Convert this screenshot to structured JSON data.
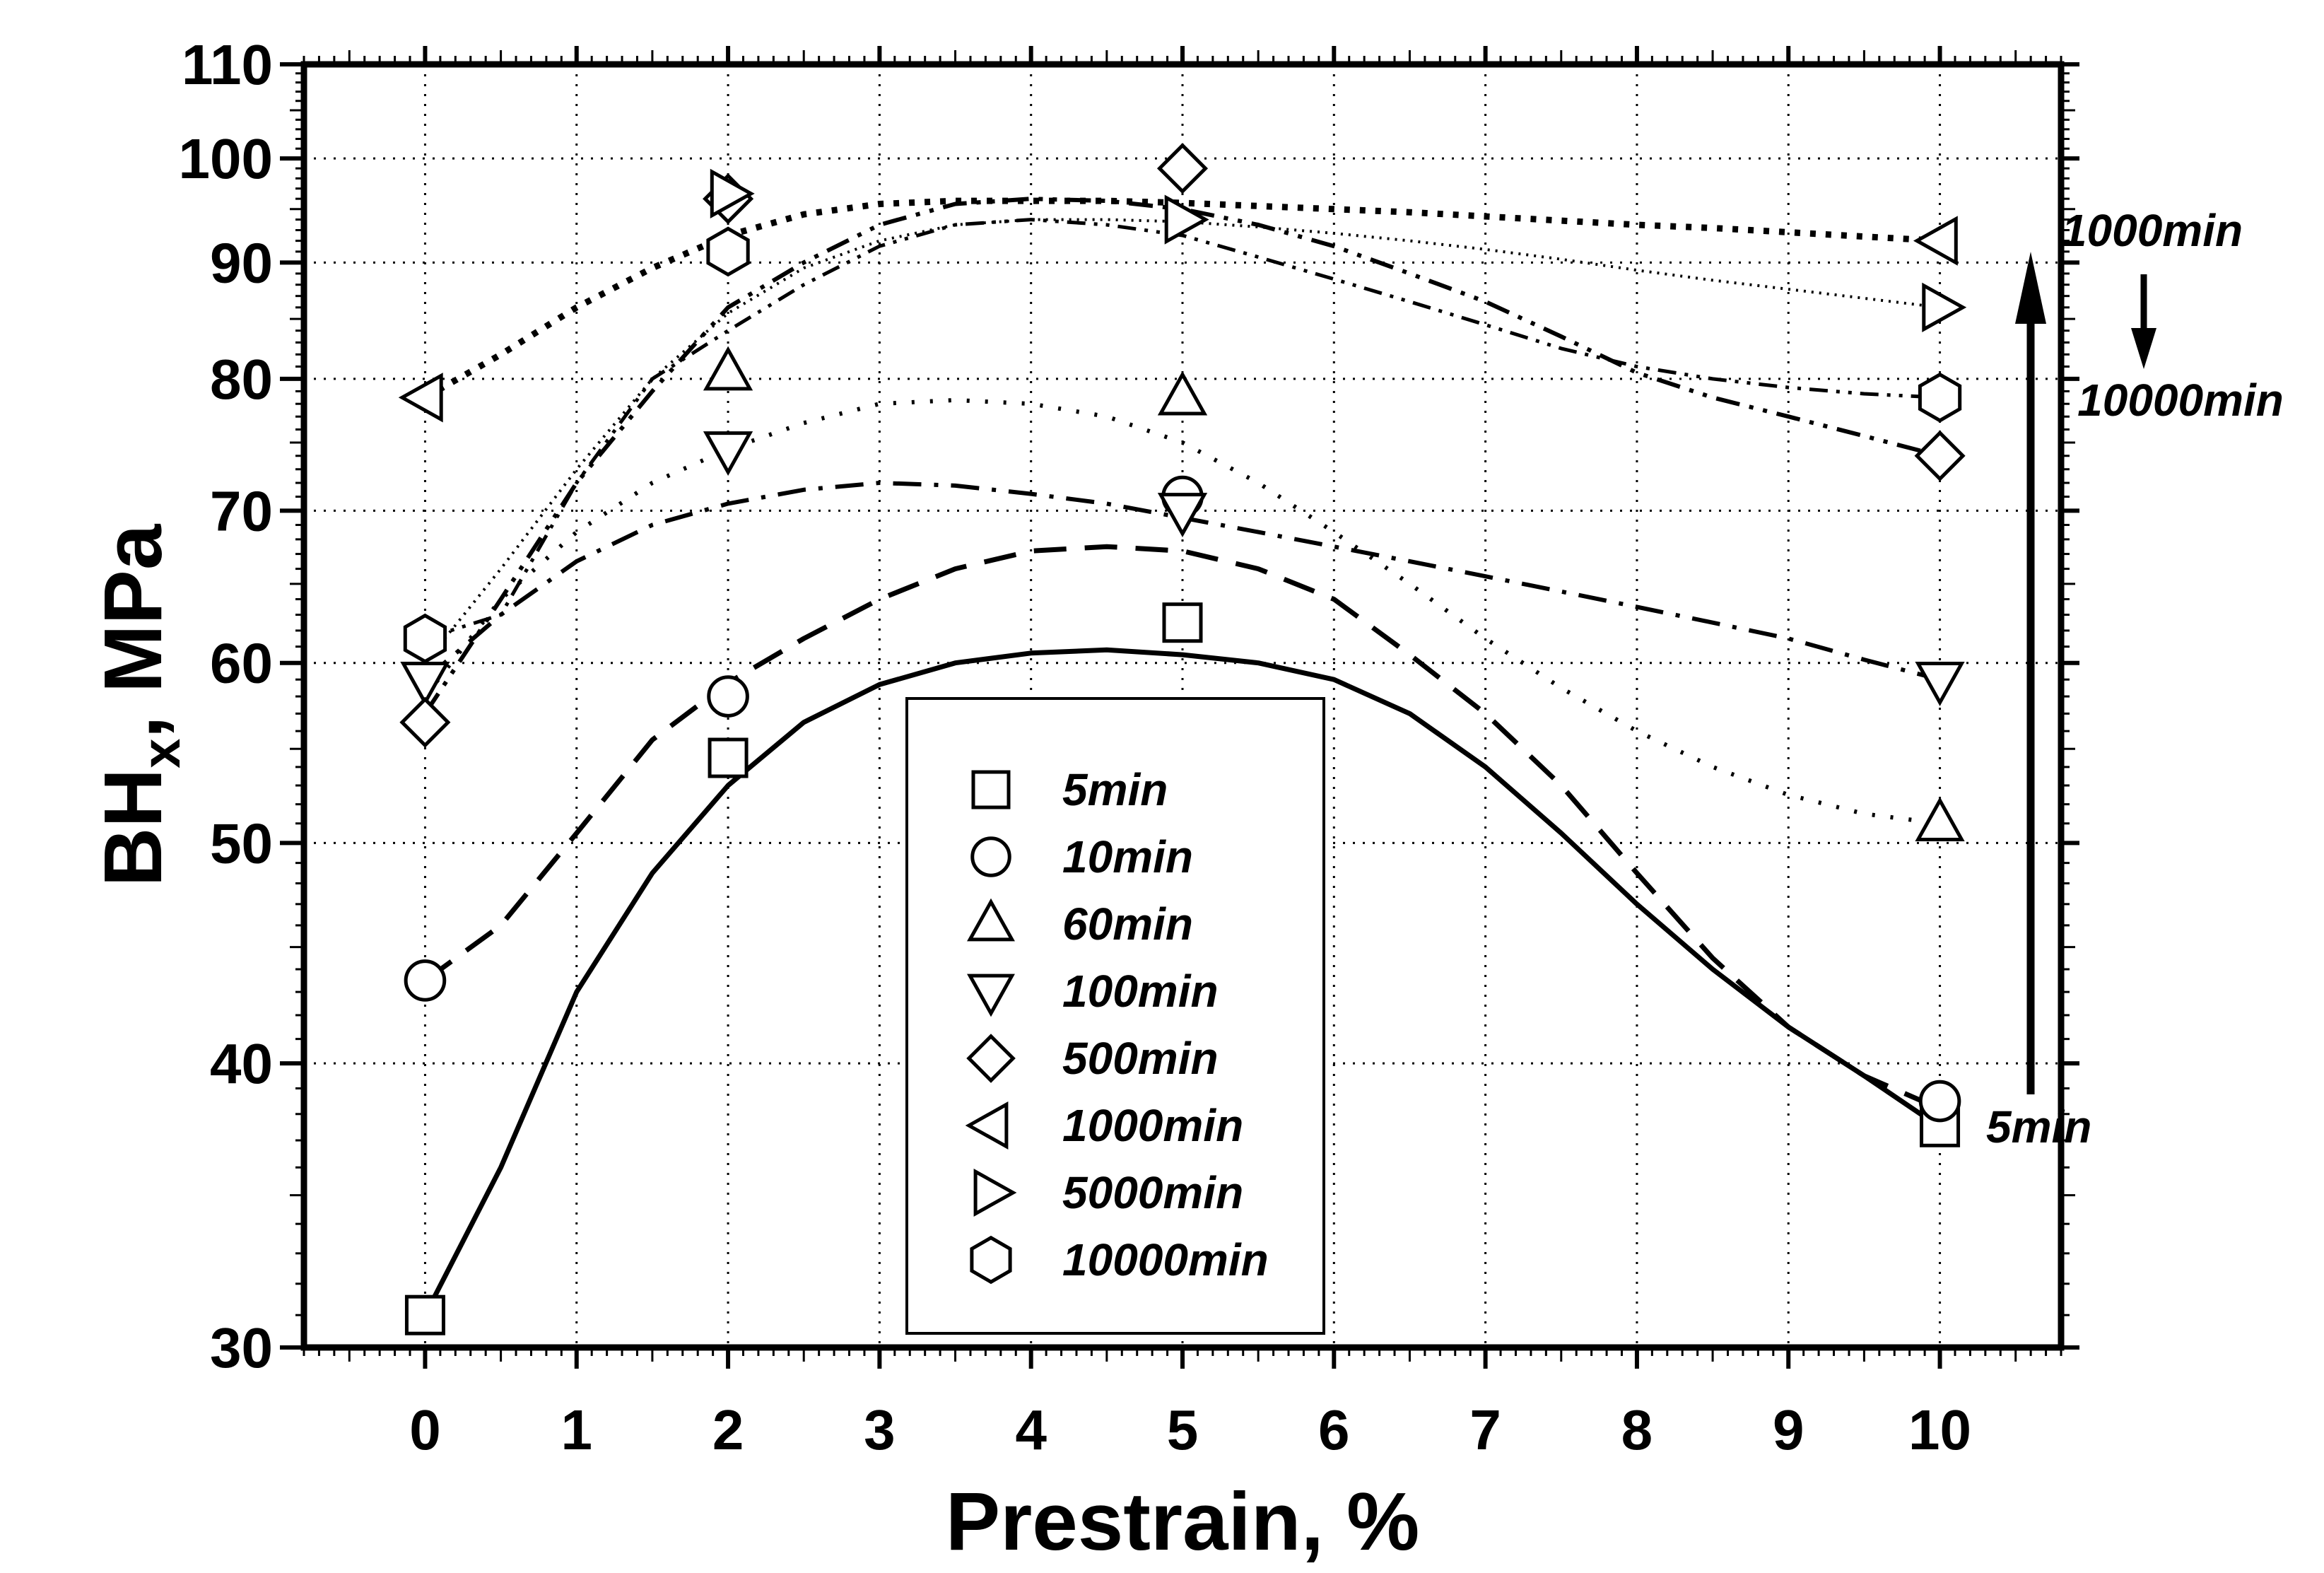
{
  "chart_data": {
    "type": "scatter",
    "title": "",
    "xlabel": "Prestrain, %",
    "ylabel": "BH",
    "ylabel_sub": "x",
    "ylabel_unit": ", MPa",
    "xlim": [
      -0.8,
      10.8
    ],
    "ylim": [
      30,
      110
    ],
    "yscale": "log",
    "grid": true,
    "grid_style": "dotted",
    "x_ticks": [
      0,
      1,
      2,
      3,
      4,
      5,
      6,
      7,
      8,
      9,
      10
    ],
    "x_tick_labels": [
      "0",
      "1",
      "2",
      "3",
      "4",
      "5",
      "6",
      "7",
      "8",
      "9",
      "10"
    ],
    "y_ticks": [
      30,
      40,
      50,
      60,
      70,
      80,
      90,
      100,
      110
    ],
    "y_tick_labels": [
      "30",
      "40",
      "50",
      "60",
      "70",
      "80",
      "90",
      "100",
      "110"
    ],
    "x_categories": [
      0,
      2,
      5,
      10
    ],
    "legend_position": "center",
    "series": [
      {
        "name": "5min",
        "marker": "square",
        "line": "solid",
        "x": [
          0,
          2,
          5,
          10
        ],
        "values": [
          31,
          54.5,
          62.5,
          37.5
        ],
        "curve": [
          [
            0,
            31
          ],
          [
            0.5,
            36
          ],
          [
            1,
            43
          ],
          [
            1.5,
            48.5
          ],
          [
            2,
            53
          ],
          [
            2.5,
            56.5
          ],
          [
            3,
            58.7
          ],
          [
            3.5,
            60
          ],
          [
            4,
            60.6
          ],
          [
            4.5,
            60.8
          ],
          [
            5,
            60.5
          ],
          [
            5.5,
            60
          ],
          [
            6,
            59
          ],
          [
            6.5,
            57
          ],
          [
            7,
            54
          ],
          [
            7.5,
            50.5
          ],
          [
            8,
            47
          ],
          [
            8.5,
            44
          ],
          [
            9,
            41.5
          ],
          [
            9.5,
            39.5
          ],
          [
            10,
            37.5
          ]
        ]
      },
      {
        "name": "10min",
        "marker": "circle",
        "line": "dashed",
        "x": [
          0,
          2,
          5,
          10
        ],
        "values": [
          43.5,
          58,
          71,
          38.5
        ],
        "curve": [
          [
            0,
            43.5
          ],
          [
            0.5,
            46
          ],
          [
            1,
            50.5
          ],
          [
            1.5,
            55.5
          ],
          [
            2,
            58.8
          ],
          [
            2.5,
            61.5
          ],
          [
            3,
            64
          ],
          [
            3.5,
            66
          ],
          [
            4,
            67.2
          ],
          [
            4.5,
            67.5
          ],
          [
            5,
            67.2
          ],
          [
            5.5,
            66
          ],
          [
            6,
            64
          ],
          [
            6.5,
            60.5
          ],
          [
            7,
            57
          ],
          [
            7.5,
            53
          ],
          [
            8,
            48.5
          ],
          [
            8.5,
            44.5
          ],
          [
            9,
            41.5
          ],
          [
            9.5,
            39.5
          ],
          [
            10,
            38.2
          ]
        ]
      },
      {
        "name": "60min",
        "marker": "triangle-up",
        "line": "dotted",
        "x": [
          2,
          5,
          10
        ],
        "values": [
          80.5,
          78.5,
          51
        ],
        "curve": [
          [
            0,
            58
          ],
          [
            0.5,
            64
          ],
          [
            1,
            68.5
          ],
          [
            1.5,
            72
          ],
          [
            2,
            74.5
          ],
          [
            2.5,
            76.5
          ],
          [
            3,
            78
          ],
          [
            3.5,
            78.3
          ],
          [
            4,
            78
          ],
          [
            4.5,
            77
          ],
          [
            5,
            75
          ],
          [
            5.5,
            72
          ],
          [
            6,
            68.5
          ],
          [
            6.5,
            65
          ],
          [
            7,
            61.5
          ],
          [
            7.5,
            58.5
          ],
          [
            8,
            56
          ],
          [
            8.5,
            54
          ],
          [
            9,
            52.5
          ],
          [
            9.5,
            51.5
          ],
          [
            10,
            51
          ]
        ]
      },
      {
        "name": "100min",
        "marker": "triangle-down",
        "line": "dash-dot",
        "x": [
          0,
          2,
          5,
          10
        ],
        "values": [
          59,
          74.5,
          70,
          59
        ],
        "curve": [
          [
            0,
            59
          ],
          [
            0.5,
            63
          ],
          [
            1,
            66.5
          ],
          [
            1.5,
            69
          ],
          [
            2,
            70.5
          ],
          [
            2.5,
            71.5
          ],
          [
            3,
            72
          ],
          [
            3.5,
            71.8
          ],
          [
            4,
            71.2
          ],
          [
            4.5,
            70.5
          ],
          [
            5,
            69.5
          ],
          [
            5.5,
            68.5
          ],
          [
            6,
            67.5
          ],
          [
            6.5,
            66.5
          ],
          [
            7,
            65.5
          ],
          [
            7.5,
            64.5
          ],
          [
            8,
            63.5
          ],
          [
            8.5,
            62.5
          ],
          [
            9,
            61.5
          ],
          [
            9.5,
            60.2
          ],
          [
            10,
            59
          ]
        ]
      },
      {
        "name": "500min",
        "marker": "diamond",
        "line": "dash-dot-dot",
        "x": [
          0,
          2,
          5,
          10
        ],
        "values": [
          56.5,
          96,
          99,
          74
        ],
        "curve": [
          [
            0,
            57
          ],
          [
            0.5,
            64
          ],
          [
            1,
            72
          ],
          [
            1.5,
            79
          ],
          [
            2,
            86
          ],
          [
            2.5,
            90
          ],
          [
            3,
            93.5
          ],
          [
            3.5,
            95.5
          ],
          [
            4,
            96
          ],
          [
            4.5,
            95.8
          ],
          [
            5,
            95
          ],
          [
            5.5,
            93.5
          ],
          [
            6,
            91.5
          ],
          [
            6.5,
            89
          ],
          [
            7,
            86.5
          ],
          [
            7.5,
            83.5
          ],
          [
            8,
            80.5
          ],
          [
            8.5,
            78.5
          ],
          [
            9,
            77
          ],
          [
            9.5,
            75.5
          ],
          [
            10,
            74
          ]
        ]
      },
      {
        "name": "1000min",
        "marker": "triangle-left",
        "line": "dense-dotted",
        "x": [
          0,
          10
        ],
        "values": [
          78.5,
          92
        ],
        "curve": [
          [
            0,
            78.5
          ],
          [
            0.5,
            82
          ],
          [
            1,
            86
          ],
          [
            1.5,
            89.5
          ],
          [
            2,
            92.5
          ],
          [
            2.5,
            94.5
          ],
          [
            3,
            95.5
          ],
          [
            3.5,
            95.8
          ],
          [
            4,
            95.8
          ],
          [
            4.5,
            95.8
          ],
          [
            5,
            95.6
          ],
          [
            5.5,
            95.3
          ],
          [
            6,
            95
          ],
          [
            6.5,
            94.7
          ],
          [
            7,
            94.3
          ],
          [
            7.5,
            93.9
          ],
          [
            8,
            93.5
          ],
          [
            8.5,
            93.2
          ],
          [
            9,
            92.8
          ],
          [
            9.5,
            92.4
          ],
          [
            10,
            92
          ]
        ]
      },
      {
        "name": "5000min",
        "marker": "triangle-right",
        "line": "fine-dotted",
        "x": [
          2,
          5,
          10
        ],
        "values": [
          96.5,
          94,
          86
        ],
        "curve": [
          [
            0,
            60
          ],
          [
            0.5,
            66
          ],
          [
            1,
            73
          ],
          [
            1.5,
            80
          ],
          [
            2,
            85.5
          ],
          [
            2.5,
            89.5
          ],
          [
            3,
            92
          ],
          [
            3.5,
            93.5
          ],
          [
            4,
            94
          ],
          [
            4.5,
            94
          ],
          [
            5,
            93.8
          ],
          [
            5.5,
            93.3
          ],
          [
            6,
            92.7
          ],
          [
            6.5,
            92
          ],
          [
            7,
            91.2
          ],
          [
            7.5,
            90.3
          ],
          [
            8,
            89.3
          ],
          [
            8.5,
            88.4
          ],
          [
            9,
            87.6
          ],
          [
            9.5,
            86.8
          ],
          [
            10,
            86
          ]
        ]
      },
      {
        "name": "10000min",
        "marker": "hexagon",
        "line": "dash-dot-dot-long",
        "x": [
          0,
          2,
          10
        ],
        "values": [
          61.5,
          91,
          78.5
        ],
        "curve": [
          [
            0,
            61.5
          ],
          [
            0.5,
            63
          ],
          [
            1,
            72
          ],
          [
            1.5,
            80
          ],
          [
            2,
            84
          ],
          [
            2.5,
            88
          ],
          [
            3,
            91.5
          ],
          [
            3.5,
            93.5
          ],
          [
            4,
            94
          ],
          [
            4.5,
            93.5
          ],
          [
            5,
            92.5
          ],
          [
            5.5,
            90.5
          ],
          [
            6,
            88.5
          ],
          [
            6.5,
            86.5
          ],
          [
            7,
            84.5
          ],
          [
            7.5,
            82.5
          ],
          [
            8,
            81
          ],
          [
            8.5,
            80
          ],
          [
            9,
            79.3
          ],
          [
            9.5,
            78.8
          ],
          [
            10,
            78.5
          ]
        ]
      }
    ],
    "annotations": [
      {
        "text": "1000min",
        "role": "top-label"
      },
      {
        "text": "10000min",
        "role": "right-label"
      },
      {
        "text": "5min",
        "role": "bottom-label"
      }
    ]
  }
}
